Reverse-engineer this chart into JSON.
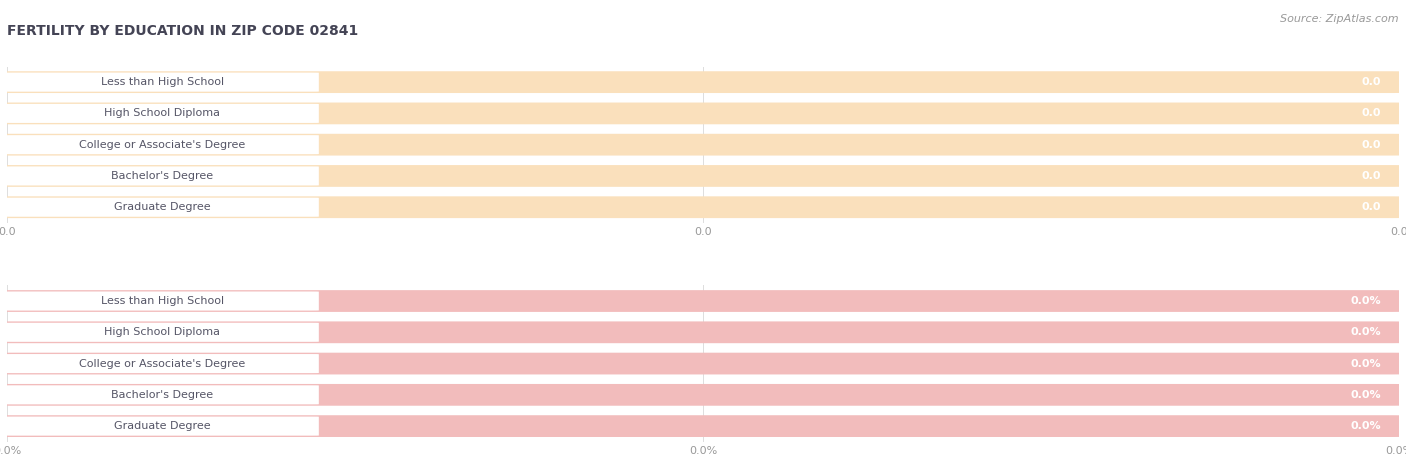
{
  "title": "FERTILITY BY EDUCATION IN ZIP CODE 02841",
  "source": "Source: ZipAtlas.com",
  "categories": [
    "Less than High School",
    "High School Diploma",
    "College or Associate's Degree",
    "Bachelor's Degree",
    "Graduate Degree"
  ],
  "top_values": [
    0.0,
    0.0,
    0.0,
    0.0,
    0.0
  ],
  "bottom_values": [
    0.0,
    0.0,
    0.0,
    0.0,
    0.0
  ],
  "top_bar_color": "#F7C98C",
  "top_bar_bg": "#FAE0BC",
  "bottom_bar_color": "#E8908A",
  "bottom_bar_bg": "#F2BCBC",
  "top_tick_label": "0.0",
  "bottom_tick_label": "0.0%",
  "bg_color": "#FFFFFF",
  "row_bg_color": "#F5F5F5",
  "label_text_color": "#555566",
  "value_text_color": "#FFFFFF",
  "tick_color": "#999999",
  "grid_color": "#DDDDDD",
  "title_color": "#444455",
  "source_color": "#999999",
  "title_fontsize": 10,
  "source_fontsize": 8,
  "bar_label_fontsize": 8,
  "bar_value_fontsize": 8,
  "tick_fontsize": 8
}
